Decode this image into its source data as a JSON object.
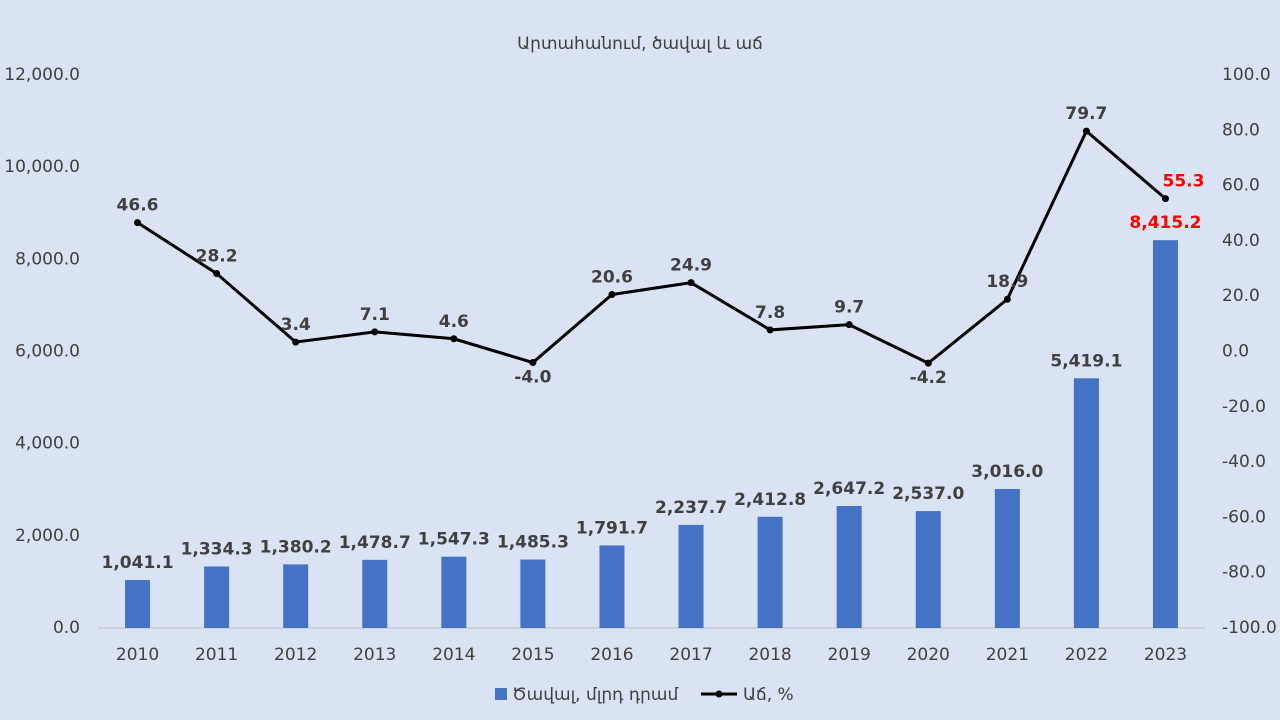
{
  "chart_data": {
    "type": "combo",
    "title": "Արտահանում, ծավալ և աճ",
    "categories": [
      "2010",
      "2011",
      "2012",
      "2013",
      "2014",
      "2015",
      "2016",
      "2017",
      "2018",
      "2019",
      "2020",
      "2021",
      "2022",
      "2023"
    ],
    "series": [
      {
        "name": "Ծավալ, մլրդ դրամ",
        "type": "bar",
        "color": "#4472c4",
        "axis": "y",
        "values": [
          1041.1,
          1334.3,
          1380.2,
          1478.7,
          1547.3,
          1485.3,
          1791.7,
          2237.7,
          2412.8,
          2647.2,
          2537.0,
          3016.0,
          5419.1,
          8415.2
        ],
        "value_labels": [
          "1,041.1",
          "1,334.3",
          "1,380.2",
          "1,478.7",
          "1,547.3",
          "1,485.3",
          "1,791.7",
          "2,237.7",
          "2,412.8",
          "2,647.2",
          "2,537.0",
          "3,016.0",
          "5,419.1",
          "8,415.2"
        ],
        "last_label_color": "#ff0000"
      },
      {
        "name": "Աճ, %",
        "type": "line",
        "color": "#000000",
        "axis": "y2",
        "values": [
          46.6,
          28.2,
          3.4,
          7.1,
          4.6,
          -4.0,
          20.6,
          24.9,
          7.8,
          9.7,
          -4.2,
          18.9,
          79.7,
          55.3
        ],
        "value_labels": [
          "46.6",
          "28.2",
          "3.4",
          "7.1",
          "4.6",
          "-4.0",
          "20.6",
          "24.9",
          "7.8",
          "9.7",
          "-4.2",
          "18.9",
          "79.7",
          "55.3"
        ],
        "last_label_color": "#ff0000"
      }
    ],
    "ylim": [
      0,
      12000
    ],
    "yticks": [
      {
        "value": 0,
        "label": "0.0"
      },
      {
        "value": 2000,
        "label": "2,000.0"
      },
      {
        "value": 4000,
        "label": "4,000.0"
      },
      {
        "value": 6000,
        "label": "6,000.0"
      },
      {
        "value": 8000,
        "label": "8,000.0"
      },
      {
        "value": 10000,
        "label": "10,000.0"
      },
      {
        "value": 12000,
        "label": "12,000.0"
      }
    ],
    "y2lim": [
      -100,
      100
    ],
    "y2ticks": [
      {
        "value": -100,
        "label": "-100.0"
      },
      {
        "value": -80,
        "label": "-80.0"
      },
      {
        "value": -60,
        "label": "-60.0"
      },
      {
        "value": -40,
        "label": "-40.0"
      },
      {
        "value": -20,
        "label": "-20.0"
      },
      {
        "value": 0,
        "label": "0.0"
      },
      {
        "value": 20,
        "label": "20.0"
      },
      {
        "value": 40,
        "label": "40.0"
      },
      {
        "value": 60,
        "label": "60.0"
      },
      {
        "value": 80,
        "label": "80.0"
      },
      {
        "value": 100,
        "label": "100.0"
      }
    ],
    "legend": "bottom"
  }
}
